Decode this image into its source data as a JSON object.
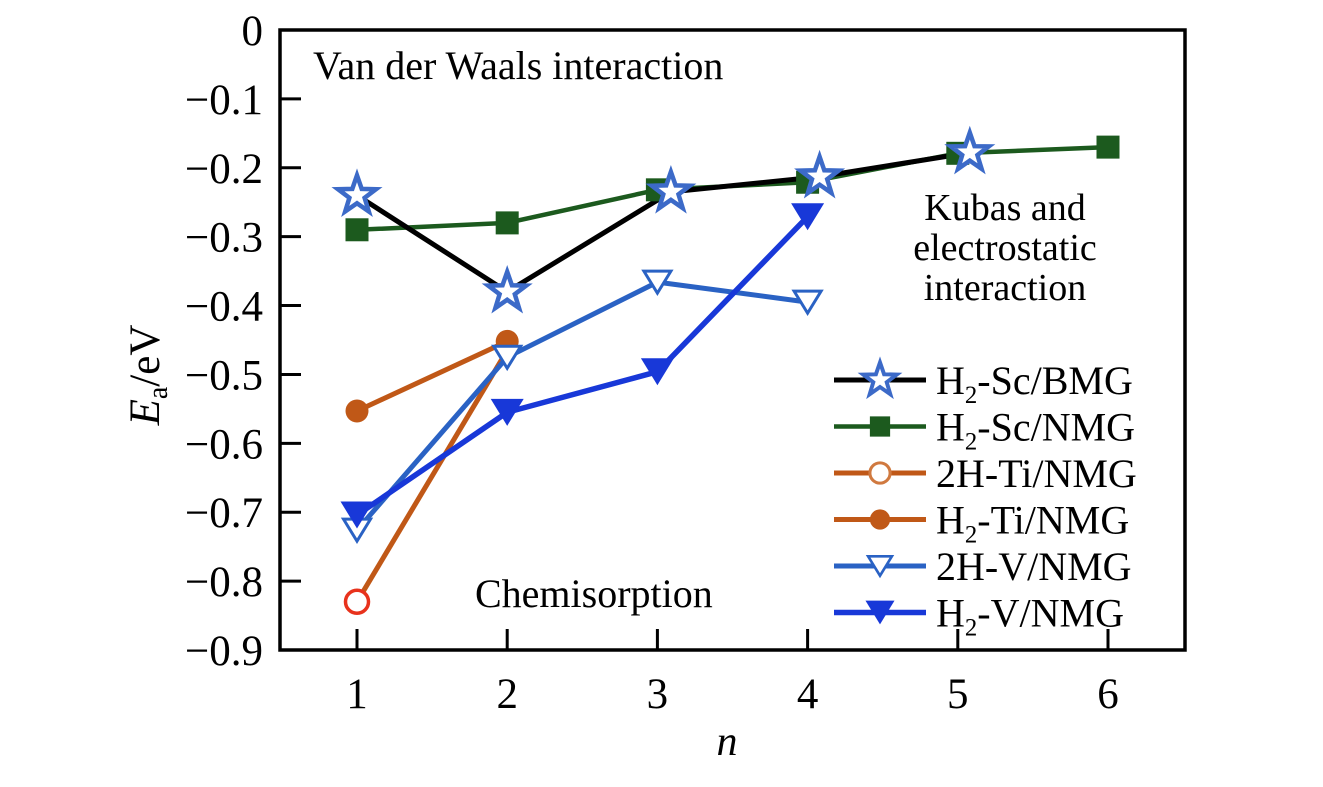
{
  "chart_data": {
    "type": "line",
    "title": "",
    "xlabel": "n",
    "ylabel": "Ea/eV",
    "ylabel_parts": {
      "symbol": "E",
      "sub": "a",
      "unit": "/eV"
    },
    "xlim": [
      0.5,
      6.5
    ],
    "ylim": [
      -0.9,
      0
    ],
    "xticks": [
      1,
      2,
      3,
      4,
      5,
      6
    ],
    "yticks": [
      0,
      -0.1,
      -0.2,
      -0.3,
      -0.4,
      -0.5,
      -0.6,
      -0.7,
      -0.8,
      -0.9
    ],
    "grid": false,
    "legend_position": "inside-right-middle",
    "annotations": {
      "top_left": "Van der Waals interaction",
      "right_lines": [
        "Kubas and",
        "electrostatic",
        "interaction"
      ],
      "bottom": "Chemisorption"
    },
    "series": [
      {
        "name": "H₂-Sc/BMG",
        "line_color": "#000000",
        "line_width": 5,
        "marker": "star-open",
        "marker_color": "#3c6ac8",
        "marker_fill": "#ffffff",
        "x": [
          1,
          2,
          3,
          4,
          5
        ],
        "y": [
          -0.24,
          -0.38,
          -0.235,
          -0.213,
          -0.178
        ],
        "x_plot_offsets": [
          0,
          0,
          0.09,
          0.08,
          0.08
        ]
      },
      {
        "name": "H₂-Sc/NMG",
        "line_color": "#1c5a1e",
        "line_width": 4.5,
        "marker": "square",
        "marker_color": "#1c5a1e",
        "x": [
          1,
          2,
          3,
          4,
          5,
          6
        ],
        "y": [
          -0.29,
          -0.28,
          -0.232,
          -0.221,
          -0.179,
          -0.17
        ]
      },
      {
        "name": "2H-Ti/NMG",
        "line_color": "#c05817",
        "line_width": 5,
        "marker": "circle-open",
        "marker_color": "#e8321c",
        "legend_marker_color": "#d0793f",
        "marker_fill": "#ffffff",
        "x": [
          1,
          2
        ],
        "y": [
          -0.83,
          -0.465
        ],
        "skip_markers": [
          1
        ]
      },
      {
        "name": "H₂-Ti/NMG",
        "line_color": "#c05817",
        "line_width": 5,
        "marker": "circle",
        "marker_color": "#c05817",
        "x": [
          1,
          2
        ],
        "y": [
          -0.553,
          -0.452
        ]
      },
      {
        "name": "2H-V/NMG",
        "line_color": "#2a62c4",
        "line_width": 5,
        "marker": "triangle-down-open",
        "marker_color": "#2a62c4",
        "marker_fill": "#ffffff",
        "x": [
          1,
          2,
          3,
          4
        ],
        "y": [
          -0.726,
          -0.475,
          -0.366,
          -0.395
        ]
      },
      {
        "name": "H₂-V/NMG",
        "line_color": "#1838d8",
        "line_width": 5.5,
        "marker": "triangle-down",
        "marker_color": "#1838d8",
        "x": [
          1,
          2,
          3,
          4
        ],
        "y": [
          -0.704,
          -0.555,
          -0.496,
          -0.271
        ]
      }
    ]
  }
}
